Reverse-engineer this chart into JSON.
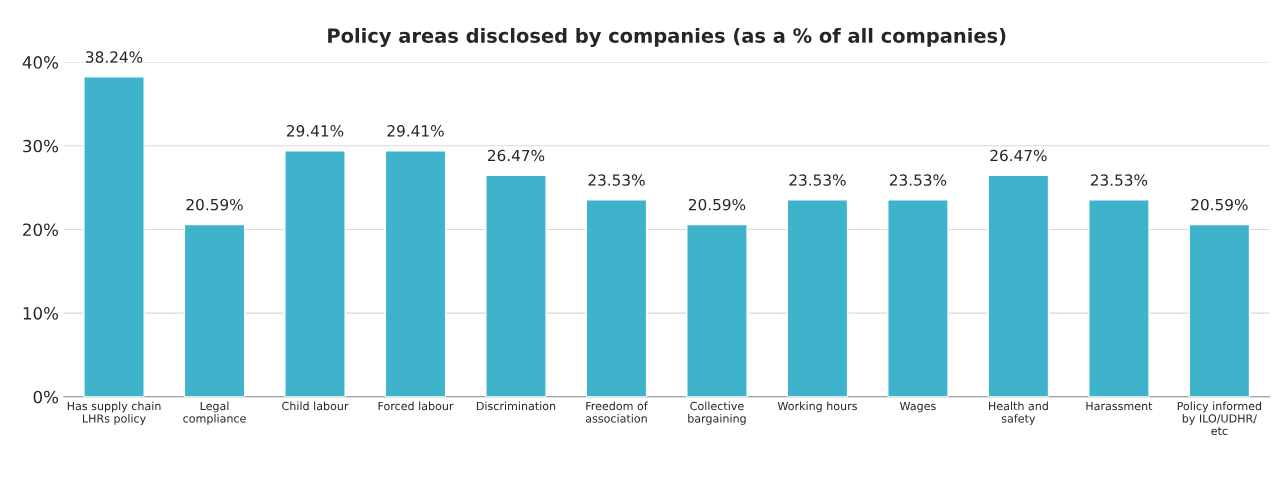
{
  "chart_data": {
    "type": "bar",
    "title": "Policy areas disclosed by companies (as a % of all companies)",
    "categories": [
      "Has supply chain\nLHRs policy",
      "Legal\ncompliance",
      "Child labour",
      "Forced labour",
      "Discrimination",
      "Freedom of\nassociation",
      "Collective\nbargaining",
      "Working hours",
      "Wages",
      "Health and\nsafety",
      "Harassment",
      "Policy informed\nby ILO/UDHR/\netc"
    ],
    "values": [
      38.24,
      20.59,
      29.41,
      29.41,
      26.47,
      23.53,
      20.59,
      23.53,
      23.53,
      26.47,
      23.53,
      20.59
    ],
    "value_labels": [
      "38.24%",
      "20.59%",
      "29.41%",
      "29.41%",
      "26.47%",
      "23.53%",
      "20.59%",
      "23.53%",
      "23.53%",
      "26.47%",
      "23.53%",
      "20.59%"
    ],
    "color": "#3fb3cc",
    "ylim": [
      0,
      40
    ],
    "yticks": [
      {
        "value": 0,
        "label": "0%"
      },
      {
        "value": 10,
        "label": "10%"
      },
      {
        "value": 20,
        "label": "20%"
      },
      {
        "value": 30,
        "label": "30%"
      },
      {
        "value": 40,
        "label": "40%"
      }
    ],
    "grid": "y",
    "legend": false
  }
}
